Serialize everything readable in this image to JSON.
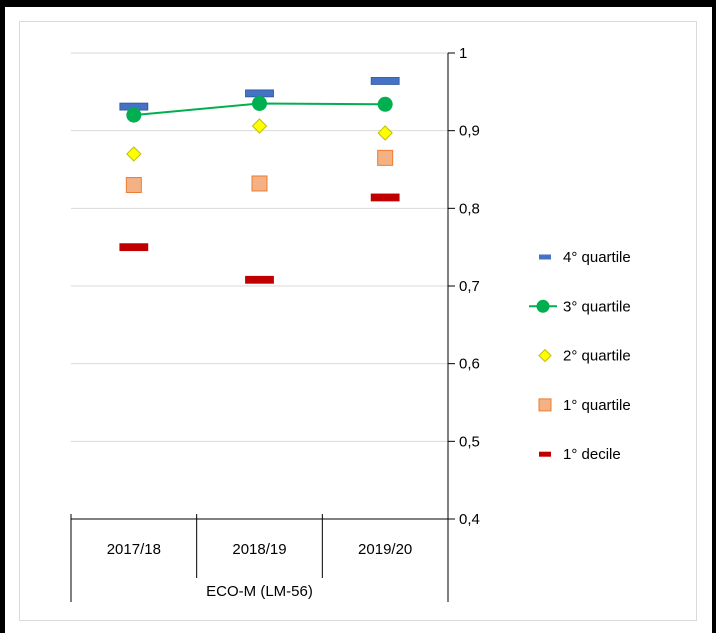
{
  "chart_data": {
    "type": "scatter",
    "categories": [
      "2017/18",
      "2018/19",
      "2019/20"
    ],
    "group_label": "ECO-M (LM-56)",
    "ylim": [
      0.4,
      1
    ],
    "yticks": [
      "1",
      "0,9",
      "0,8",
      "0,7",
      "0,6",
      "0,5",
      "0,4"
    ],
    "ytick_values": [
      1,
      0.9,
      0.8,
      0.7,
      0.6,
      0.5,
      0.4
    ],
    "y_axis_position": "right",
    "grid": true,
    "legend_position": "right",
    "series": [
      {
        "name": "4° quartile",
        "marker": "dash",
        "color": "#4472c4",
        "values": [
          0.931,
          0.948,
          0.964
        ]
      },
      {
        "name": "3° quartile",
        "marker": "circle-line",
        "color": "#00b050",
        "line_color": "#00b050",
        "values": [
          0.92,
          0.935,
          0.934
        ]
      },
      {
        "name": "2° quartile",
        "marker": "diamond",
        "color": "#ffff00",
        "stroke": "#bfbf00",
        "values": [
          0.87,
          0.906,
          0.897
        ]
      },
      {
        "name": "1° quartile",
        "marker": "square",
        "color": "#f4b183",
        "stroke": "#ed7d31",
        "values": [
          0.83,
          0.832,
          0.865
        ]
      },
      {
        "name": "1° decile",
        "marker": "dash",
        "color": "#c00000",
        "values": [
          0.75,
          0.708,
          0.814
        ]
      }
    ]
  }
}
